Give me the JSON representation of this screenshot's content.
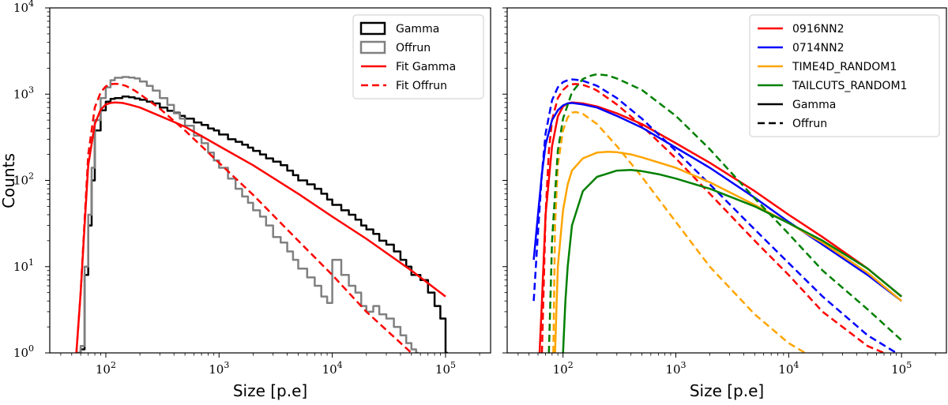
{
  "chart_data": [
    {
      "type": "line",
      "panel": "left",
      "xscale": "log",
      "yscale": "log",
      "xlim": [
        32,
        250000
      ],
      "ylim": [
        1,
        10000
      ],
      "xlabel": "Size [p.e]",
      "ylabel": "Counts",
      "xticks": [
        {
          "base": "10",
          "exp": "2",
          "value": 100
        },
        {
          "base": "10",
          "exp": "3",
          "value": 1000
        },
        {
          "base": "10",
          "exp": "4",
          "value": 10000
        },
        {
          "base": "10",
          "exp": "5",
          "value": 100000
        }
      ],
      "yticks": [
        {
          "base": "10",
          "exp": "0",
          "value": 1
        },
        {
          "base": "10",
          "exp": "1",
          "value": 10
        },
        {
          "base": "10",
          "exp": "2",
          "value": 100
        },
        {
          "base": "10",
          "exp": "3",
          "value": 1000
        },
        {
          "base": "10",
          "exp": "4",
          "value": 10000
        }
      ],
      "legend_position": "top-right",
      "series": [
        {
          "name": "Gamma",
          "style": "step",
          "color": "#000000",
          "dash": "solid",
          "x": [
            55,
            60,
            65,
            70,
            75,
            80,
            90,
            100,
            110,
            120,
            140,
            160,
            180,
            200,
            230,
            260,
            300,
            350,
            400,
            450,
            500,
            600,
            700,
            800,
            900,
            1000,
            1200,
            1400,
            1600,
            1800,
            2000,
            2300,
            2600,
            3000,
            3500,
            4000,
            4500,
            5000,
            6000,
            7000,
            8000,
            9000,
            10000,
            12000,
            14000,
            16000,
            18000,
            20000,
            23000,
            26000,
            30000,
            35000,
            40000,
            45000,
            50000,
            60000,
            70000,
            80000,
            90000,
            100000
          ],
          "values": [
            1,
            1.1,
            8,
            30,
            100,
            380,
            650,
            820,
            880,
            900,
            940,
            920,
            890,
            860,
            820,
            780,
            700,
            640,
            610,
            560,
            520,
            470,
            440,
            400,
            380,
            340,
            300,
            280,
            260,
            240,
            220,
            200,
            180,
            165,
            150,
            130,
            115,
            100,
            90,
            80,
            70,
            60,
            52,
            45,
            40,
            35,
            30,
            27,
            24,
            20,
            18,
            15,
            12,
            10,
            8,
            7,
            5,
            3.5,
            2.5,
            1
          ]
        },
        {
          "name": "Offrun",
          "style": "step",
          "color": "#808080",
          "dash": "solid",
          "x": [
            55,
            60,
            65,
            70,
            75,
            80,
            90,
            100,
            110,
            120,
            140,
            160,
            180,
            200,
            230,
            260,
            300,
            350,
            400,
            450,
            500,
            600,
            700,
            800,
            900,
            1000,
            1200,
            1400,
            1600,
            1800,
            2000,
            2300,
            2600,
            3000,
            3500,
            4000,
            4500,
            5000,
            6000,
            7000,
            8000,
            9000,
            10000,
            12000,
            14000,
            16000,
            18000,
            20000,
            23000,
            26000,
            30000,
            35000,
            40000,
            45000,
            50000,
            55000
          ],
          "values": [
            1,
            1.2,
            10,
            40,
            140,
            500,
            900,
            1200,
            1450,
            1550,
            1580,
            1560,
            1520,
            1400,
            1250,
            1100,
            900,
            750,
            600,
            520,
            430,
            330,
            270,
            210,
            170,
            140,
            105,
            80,
            65,
            55,
            45,
            38,
            30,
            22,
            19,
            15,
            12,
            9.5,
            7.5,
            6,
            4.5,
            3.8,
            12,
            8,
            6,
            5,
            3.5,
            3.0,
            3.5,
            2.8,
            2.5,
            2.0,
            1.6,
            1.3,
            1.1,
            1
          ]
        },
        {
          "name": "Fit Gamma",
          "style": "line",
          "color": "#ff0000",
          "dash": "solid",
          "x": [
            55,
            60,
            65,
            70,
            80,
            90,
            100,
            110,
            120,
            140,
            160,
            200,
            300,
            500,
            1000,
            2000,
            5000,
            10000,
            20000,
            50000,
            100000
          ],
          "values": [
            1,
            5,
            30,
            150,
            450,
            660,
            760,
            790,
            800,
            790,
            760,
            700,
            560,
            420,
            250,
            150,
            70,
            38,
            21,
            9,
            4.5
          ]
        },
        {
          "name": "Fit Offrun",
          "style": "line",
          "color": "#ff0000",
          "dash": "dashed",
          "x": [
            55,
            60,
            65,
            70,
            80,
            90,
            100,
            110,
            120,
            130,
            150,
            180,
            200,
            300,
            500,
            1000,
            2000,
            5000,
            10000,
            20000,
            50000
          ],
          "values": [
            1,
            5,
            35,
            200,
            700,
            1050,
            1230,
            1300,
            1320,
            1310,
            1250,
            1100,
            1000,
            680,
            380,
            160,
            68,
            20,
            8,
            3,
            1
          ]
        }
      ]
    },
    {
      "type": "line",
      "panel": "right",
      "xscale": "log",
      "yscale": "log",
      "xlim": [
        32,
        250000
      ],
      "ylim": [
        1,
        10000
      ],
      "xlabel": "Size [p.e]",
      "ylabel": "",
      "xticks": [
        {
          "base": "10",
          "exp": "2",
          "value": 100
        },
        {
          "base": "10",
          "exp": "3",
          "value": 1000
        },
        {
          "base": "10",
          "exp": "4",
          "value": 10000
        },
        {
          "base": "10",
          "exp": "5",
          "value": 100000
        }
      ],
      "yticks": [],
      "legend_position": "top-right",
      "series": [
        {
          "name": "0916NN2",
          "color": "#ff0000",
          "dash": "solid",
          "x": [
            62,
            65,
            70,
            80,
            90,
            100,
            110,
            120,
            150,
            200,
            300,
            500,
            1000,
            2000,
            5000,
            10000,
            20000,
            50000,
            100000
          ],
          "values": [
            1,
            4,
            40,
            250,
            550,
            720,
            780,
            800,
            780,
            720,
            600,
            450,
            270,
            160,
            75,
            40,
            22,
            9.5,
            4.5
          ]
        },
        {
          "name": "0916NN2 (Offrun)",
          "color": "#ff0000",
          "dash": "dashed",
          "x": [
            65,
            70,
            75,
            80,
            90,
            100,
            110,
            120,
            130,
            150,
            180,
            200,
            300,
            500,
            1000,
            2000,
            5000,
            10000,
            20000,
            50000,
            70000
          ],
          "values": [
            1,
            40,
            220,
            500,
            900,
            1120,
            1250,
            1300,
            1310,
            1280,
            1180,
            1100,
            760,
            430,
            180,
            70,
            20,
            8,
            3,
            1.2,
            1
          ]
        },
        {
          "name": "0714NN2",
          "color": "#0000ff",
          "dash": "solid",
          "x": [
            55,
            60,
            65,
            70,
            80,
            90,
            100,
            110,
            120,
            150,
            200,
            300,
            500,
            1000,
            2000,
            5000,
            10000,
            20000,
            50000,
            100000
          ],
          "values": [
            12,
            40,
            120,
            260,
            500,
            650,
            740,
            780,
            790,
            760,
            700,
            560,
            410,
            240,
            140,
            63,
            33,
            18,
            8,
            4
          ]
        },
        {
          "name": "0714NN2 (Offrun)",
          "color": "#0000ff",
          "dash": "dashed",
          "x": [
            55,
            60,
            65,
            70,
            80,
            90,
            100,
            110,
            120,
            130,
            150,
            200,
            300,
            500,
            1000,
            2000,
            5000,
            10000,
            20000,
            50000,
            90000
          ],
          "values": [
            4,
            25,
            120,
            350,
            850,
            1200,
            1380,
            1450,
            1480,
            1470,
            1430,
            1250,
            900,
            520,
            220,
            90,
            27,
            11,
            4.5,
            1.6,
            1
          ]
        },
        {
          "name": "TIME4D_RANDOM1",
          "color": "#ffa500",
          "dash": "solid",
          "x": [
            85,
            88,
            90,
            100,
            110,
            120,
            150,
            200,
            250,
            300,
            400,
            500,
            1000,
            2000,
            5000,
            10000,
            20000,
            50000,
            100000
          ],
          "values": [
            1,
            4,
            10,
            45,
            90,
            130,
            180,
            210,
            215,
            212,
            200,
            185,
            140,
            95,
            52,
            32,
            19,
            8.5,
            4
          ]
        },
        {
          "name": "TIME4D_RANDOM1 (Offrun)",
          "color": "#ffa500",
          "dash": "dashed",
          "x": [
            82,
            85,
            90,
            100,
            110,
            120,
            130,
            150,
            200,
            300,
            500,
            1000,
            2000,
            5000,
            10000,
            14000
          ],
          "values": [
            1,
            30,
            150,
            380,
            540,
            610,
            620,
            590,
            450,
            250,
            110,
            33,
            10,
            2.8,
            1.3,
            1
          ]
        },
        {
          "name": "TAILCUTS_RANDOM1",
          "color": "#008000",
          "dash": "solid",
          "x": [
            100,
            105,
            110,
            120,
            150,
            200,
            300,
            400,
            500,
            700,
            1000,
            2000,
            5000,
            10000,
            20000,
            50000,
            100000
          ],
          "values": [
            1,
            4,
            10,
            30,
            75,
            110,
            130,
            132,
            128,
            118,
            105,
            80,
            50,
            32,
            20,
            9.5,
            4.5
          ]
        },
        {
          "name": "TAILCUTS_RANDOM1 (Offrun)",
          "color": "#008000",
          "dash": "dashed",
          "x": [
            75,
            80,
            90,
            100,
            120,
            150,
            180,
            200,
            250,
            300,
            500,
            1000,
            2000,
            5000,
            10000,
            20000,
            50000,
            100000
          ],
          "values": [
            1,
            20,
            220,
            520,
            1050,
            1500,
            1650,
            1700,
            1650,
            1520,
            1120,
            560,
            230,
            62,
            24,
            9,
            3.2,
            1.4
          ]
        }
      ],
      "legend": [
        {
          "label": "0916NN2",
          "color": "#ff0000",
          "dash": "solid"
        },
        {
          "label": "0714NN2",
          "color": "#0000ff",
          "dash": "solid"
        },
        {
          "label": "TIME4D_RANDOM1",
          "color": "#ffa500",
          "dash": "solid"
        },
        {
          "label": "TAILCUTS_RANDOM1",
          "color": "#008000",
          "dash": "solid"
        },
        {
          "label": "Gamma",
          "color": "#000000",
          "dash": "solid"
        },
        {
          "label": "Offrun",
          "color": "#000000",
          "dash": "dashed"
        }
      ]
    }
  ]
}
